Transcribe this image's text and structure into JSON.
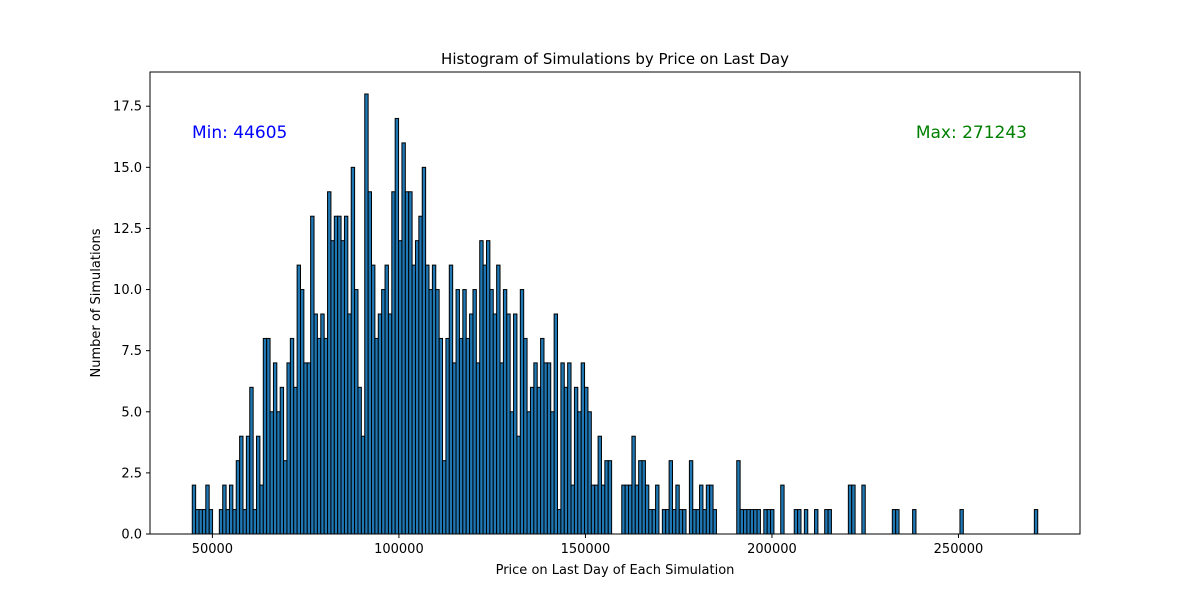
{
  "chart_data": {
    "type": "bar",
    "title": "Histogram of Simulations by Price on Last Day",
    "xlabel": "Price on Last Day of Each Simulation",
    "ylabel": "Number of Simulations",
    "xlim": [
      33273,
      282575
    ],
    "ylim": [
      0,
      18.9
    ],
    "x_ticks": [
      50000,
      100000,
      150000,
      200000,
      250000
    ],
    "y_ticks": [
      0.0,
      2.5,
      5.0,
      7.5,
      10.0,
      12.5,
      15.0,
      17.5
    ],
    "x_tick_labels": [
      "50000",
      "100000",
      "150000",
      "200000",
      "250000"
    ],
    "y_tick_labels": [
      "0.0",
      "2.5",
      "5.0",
      "7.5",
      "10.0",
      "12.5",
      "15.0",
      "17.5"
    ],
    "bin_min": 44605,
    "bin_max": 271243,
    "bin_count": 250,
    "bar_color": "#1f77b4",
    "edge_color": "#000000",
    "grid": false,
    "annotations": [
      {
        "text": "Min: 44605",
        "color": "#0000ff"
      },
      {
        "text": "Max: 271243",
        "color": "#008000"
      }
    ],
    "counts": [
      2,
      1,
      1,
      1,
      2,
      1,
      0,
      0,
      1,
      2,
      1,
      2,
      1,
      3,
      4,
      1,
      4,
      6,
      1,
      4,
      2,
      8,
      8,
      5,
      7,
      5,
      6,
      3,
      7,
      8,
      6,
      11,
      10,
      7,
      7,
      13,
      9,
      8,
      9,
      8,
      14,
      12,
      13,
      13,
      12,
      13,
      9,
      15,
      10,
      6,
      4,
      18,
      14,
      11,
      8,
      9,
      10,
      11,
      9,
      14,
      17,
      12,
      16,
      14,
      14,
      11,
      12,
      13,
      15,
      11,
      10,
      11,
      10,
      8,
      3,
      8,
      11,
      7,
      10,
      8,
      10,
      8,
      9,
      10,
      7,
      12,
      11,
      12,
      10,
      9,
      11,
      7,
      10,
      9,
      5,
      9,
      4,
      10,
      8,
      5,
      6,
      7,
      6,
      8,
      7,
      7,
      5,
      9,
      1,
      7,
      6,
      7,
      2,
      6,
      5,
      7,
      6,
      5,
      2,
      2,
      4,
      2,
      3,
      3,
      0,
      0,
      0,
      2,
      2,
      2,
      4,
      2,
      3,
      3,
      2,
      1,
      1,
      2,
      0,
      1,
      1,
      3,
      1,
      2,
      1,
      1,
      0,
      3,
      1,
      1,
      2,
      1,
      2,
      2,
      1,
      0,
      0,
      0,
      0,
      0,
      0,
      3,
      1,
      1,
      1,
      1,
      1,
      1,
      0,
      1,
      1,
      1,
      0,
      0,
      2,
      0,
      0,
      0,
      1,
      1,
      0,
      1,
      0,
      0,
      1,
      0,
      0,
      1,
      1,
      0,
      0,
      0,
      0,
      0,
      2,
      2,
      0,
      0,
      2,
      0,
      0,
      0,
      0,
      0,
      0,
      0,
      0,
      1,
      1,
      0,
      0,
      0,
      0,
      1,
      0,
      0,
      0,
      0,
      0,
      0,
      0,
      0,
      0,
      0,
      0,
      0,
      0,
      1,
      0,
      0,
      0,
      0,
      0,
      0,
      0,
      0,
      0,
      0,
      0,
      0,
      0,
      0,
      0,
      0,
      0,
      0,
      0,
      0,
      0,
      1
    ]
  }
}
